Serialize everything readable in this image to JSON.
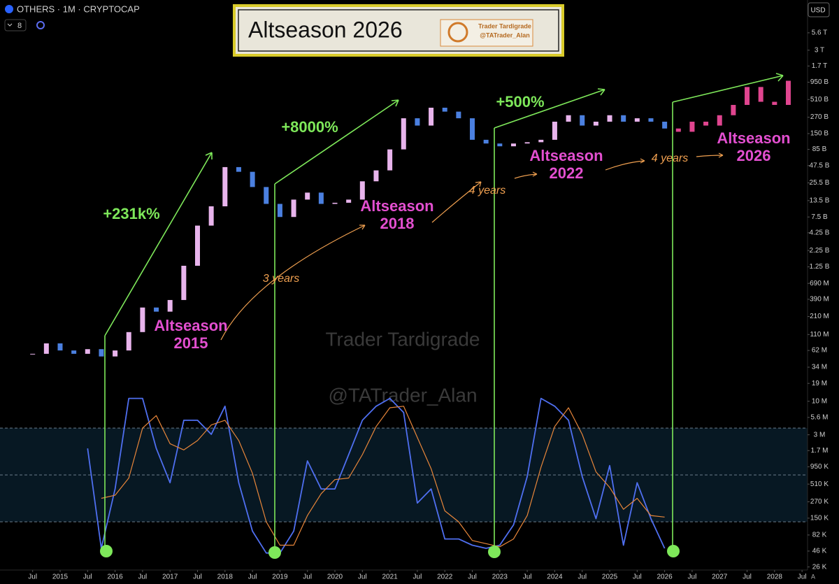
{
  "header": {
    "symbol": "OTHERS · 1M · CRYPTOCAP",
    "interval_count": "8",
    "currency": "USD",
    "auto": "A"
  },
  "banner": {
    "title": "Altseason 2026",
    "logo_name": "Trader Tardigrade",
    "logo_handle": "@TATrader_Alan"
  },
  "watermarks": [
    "Trader Tardigrade",
    "@TATrader_Alan"
  ],
  "chart_data": [
    {
      "type": "candlestick",
      "log_scale": true,
      "up_color": "#e8b4ec",
      "down_color": "#4b80e0",
      "xlim": [
        2013.906,
        2028.6
      ],
      "ylim": [
        23300,
        18200000000000.0
      ],
      "xticks": [
        {
          "value": 2014.5,
          "label": "Jul"
        },
        2015,
        {
          "value": 2015.5,
          "label": "Jul"
        },
        2016,
        {
          "value": 2016.5,
          "label": "Jul"
        },
        2017,
        {
          "value": 2017.5,
          "label": "Jul"
        },
        2018,
        {
          "value": 2018.5,
          "label": "Jul"
        },
        2019,
        {
          "value": 2019.5,
          "label": "Jul"
        },
        2020,
        {
          "value": 2020.5,
          "label": "Jul"
        },
        2021,
        {
          "value": 2021.5,
          "label": "Jul"
        },
        2022,
        {
          "value": 2022.5,
          "label": "Jul"
        },
        2023,
        {
          "value": 2023.5,
          "label": "Jul"
        },
        2024,
        {
          "value": 2024.5,
          "label": "Jul"
        },
        2025,
        {
          "value": 2025.5,
          "label": "Jul"
        },
        2026,
        {
          "value": 2026.5,
          "label": "Jul"
        },
        2027,
        {
          "value": 2027.5,
          "label": "Jul"
        },
        2028,
        {
          "value": 2028.5,
          "label": "Jul"
        }
      ],
      "yticks": [
        {
          "value": 5600000000000.0,
          "label": "5.6 T"
        },
        {
          "value": 3000000000000.0,
          "label": "3 T"
        },
        {
          "value": 1700000000000.0,
          "label": "1.7 T"
        },
        {
          "value": 950000000000.0,
          "label": "950 B"
        },
        {
          "value": 510000000000.0,
          "label": "510 B"
        },
        {
          "value": 270000000000.0,
          "label": "270 B"
        },
        {
          "value": 150000000000.0,
          "label": "150 B"
        },
        {
          "value": 85000000000.0,
          "label": "85 B"
        },
        {
          "value": 47500000000.0,
          "label": "47.5 B"
        },
        {
          "value": 25500000000.0,
          "label": "25.5 B"
        },
        {
          "value": 13500000000.0,
          "label": "13.5 B"
        },
        {
          "value": 7500000000.0,
          "label": "7.5 B"
        },
        {
          "value": 4250000000.0,
          "label": "4.25 B"
        },
        {
          "value": 2250000000.0,
          "label": "2.25 B"
        },
        {
          "value": 1250000000.0,
          "label": "1.25 B"
        },
        {
          "value": 690000000.0,
          "label": "690 M"
        },
        {
          "value": 390000000.0,
          "label": "390 M"
        },
        {
          "value": 210000000.0,
          "label": "210 M"
        },
        {
          "value": 110000000.0,
          "label": "110 M"
        },
        {
          "value": 62000000.0,
          "label": "62 M"
        },
        {
          "value": 34000000.0,
          "label": "34 M"
        },
        {
          "value": 19000000.0,
          "label": "19 M"
        },
        {
          "value": 10000000.0,
          "label": "10 M"
        },
        {
          "value": 5600000.0,
          "label": "5.6 M"
        },
        {
          "value": 3000000.0,
          "label": "3 M"
        },
        {
          "value": 1700000.0,
          "label": "1.7 M"
        },
        {
          "value": 950000.0,
          "label": "950 K"
        },
        {
          "value": 510000.0,
          "label": "510 K"
        },
        {
          "value": 270000.0,
          "label": "270 K"
        },
        {
          "value": 150000.0,
          "label": "150 K"
        },
        {
          "value": 82000.0,
          "label": "82 K"
        },
        {
          "value": 46000.0,
          "label": "46 K"
        },
        {
          "value": 26000.0,
          "label": "26 K"
        }
      ],
      "x": [
        2014.5,
        2014.75,
        2015,
        2015.25,
        2015.5,
        2015.75,
        2016,
        2016.25,
        2016.5,
        2016.75,
        2017,
        2017.25,
        2017.5,
        2017.75,
        2018,
        2018.25,
        2018.5,
        2018.75,
        2019,
        2019.25,
        2019.5,
        2019.75,
        2020,
        2020.25,
        2020.5,
        2020.75,
        2021,
        2021.25,
        2021.5,
        2021.75,
        2022,
        2022.25,
        2022.5,
        2022.75,
        2023,
        2023.25,
        2023.5,
        2023.75,
        2024,
        2024.25,
        2024.5,
        2024.75,
        2025,
        2025.25,
        2025.5,
        2025.75,
        2026
      ],
      "values": [
        55000000.0,
        80000000.0,
        62000000.0,
        55000000.0,
        65000000.0,
        50000000.0,
        62000000.0,
        120000000.0,
        290000000.0,
        250000000.0,
        380000000.0,
        1300000000.0,
        5500000000.0,
        11000000000.0,
        45000000000.0,
        38000000000.0,
        22000000000.0,
        12000000000.0,
        7500000000.0,
        14000000000.0,
        18000000000.0,
        12000000000.0,
        12500000000.0,
        14000000000.0,
        27000000000.0,
        40000000000.0,
        85000000000.0,
        260000000000.0,
        200000000000.0,
        380000000000.0,
        330000000000.0,
        260000000000.0,
        120000000000.0,
        105000000000.0,
        95000000000.0,
        105000000000.0,
        110000000000.0,
        120000000000.0,
        230000000000.0,
        290000000000.0,
        200000000000.0,
        230000000000.0,
        290000000000.0,
        230000000000.0,
        260000000000.0,
        230000000000.0,
        180000000000.0
      ],
      "projection": {
        "color": "#e0458f",
        "x": [
          2026.25,
          2026.5,
          2026.75,
          2027,
          2027.25,
          2027.5,
          2027.75,
          2028,
          2028.25
        ],
        "values": [
          160000000000.0,
          230000000000.0,
          200000000000.0,
          290000000000.0,
          420000000000.0,
          800000000000.0,
          470000000000.0,
          420000000000.0,
          1000000000000.0
        ]
      },
      "annotations": [
        {
          "lines": [
            "+231k%"
          ],
          "color": "#7ee85a"
        },
        {
          "lines": [
            "+8000%"
          ],
          "color": "#7ee85a"
        },
        {
          "lines": [
            "+500%"
          ],
          "color": "#7ee85a"
        },
        {
          "lines": [
            "Altseason",
            "2015"
          ],
          "color": "#e34fd0"
        },
        {
          "lines": [
            "3 years"
          ],
          "color": "#f0a050"
        },
        {
          "lines": [
            "Altseason",
            "2018"
          ],
          "color": "#e34fd0"
        },
        {
          "lines": [
            "4 years"
          ],
          "color": "#f0a050"
        },
        {
          "lines": [
            "Altseason",
            "2022"
          ],
          "color": "#e34fd0"
        },
        {
          "lines": [
            "4 years"
          ],
          "color": "#f0a050"
        },
        {
          "lines": [
            "Altseason",
            "2026"
          ],
          "color": "#e34fd0"
        }
      ]
    },
    {
      "type": "line",
      "ylim": [
        0,
        100
      ],
      "levels": [
        20,
        50,
        80
      ],
      "x": [
        2015.5,
        2015.75,
        2016,
        2016.25,
        2016.5,
        2016.75,
        2017,
        2017.25,
        2017.5,
        2017.75,
        2018,
        2018.25,
        2018.5,
        2018.75,
        2019,
        2019.25,
        2019.5,
        2019.75,
        2020,
        2020.25,
        2020.5,
        2020.75,
        2021,
        2021.25,
        2021.5,
        2021.75,
        2022,
        2022.25,
        2022.5,
        2022.75,
        2023,
        2023.25,
        2023.5,
        2023.75,
        2024,
        2024.25,
        2024.5,
        2024.75,
        2025,
        2025.25,
        2025.5,
        2025.75,
        2026
      ],
      "series": [
        {
          "color": "#4f6ff0",
          "values": [
            67,
            3,
            41,
            99,
            99,
            67,
            45,
            85,
            85,
            76,
            94,
            45,
            14,
            0,
            0,
            14,
            59,
            41,
            41,
            63,
            85,
            94,
            99,
            90,
            32,
            41,
            9,
            9,
            5,
            3,
            5,
            18,
            49,
            99,
            94,
            85,
            49,
            22,
            56,
            5,
            45,
            22,
            3
          ]
        },
        {
          "color": "#e8863a",
          "values": [
            null,
            35,
            37,
            48,
            80,
            88,
            70,
            66,
            72,
            82,
            85,
            72,
            51,
            20,
            5,
            5,
            24,
            38,
            47,
            48,
            63,
            81,
            93,
            94,
            74,
            54,
            27,
            20,
            8,
            6,
            4,
            9,
            24,
            55,
            81,
            93,
            76,
            52,
            42,
            28,
            35,
            24,
            23
          ]
        }
      ]
    }
  ]
}
